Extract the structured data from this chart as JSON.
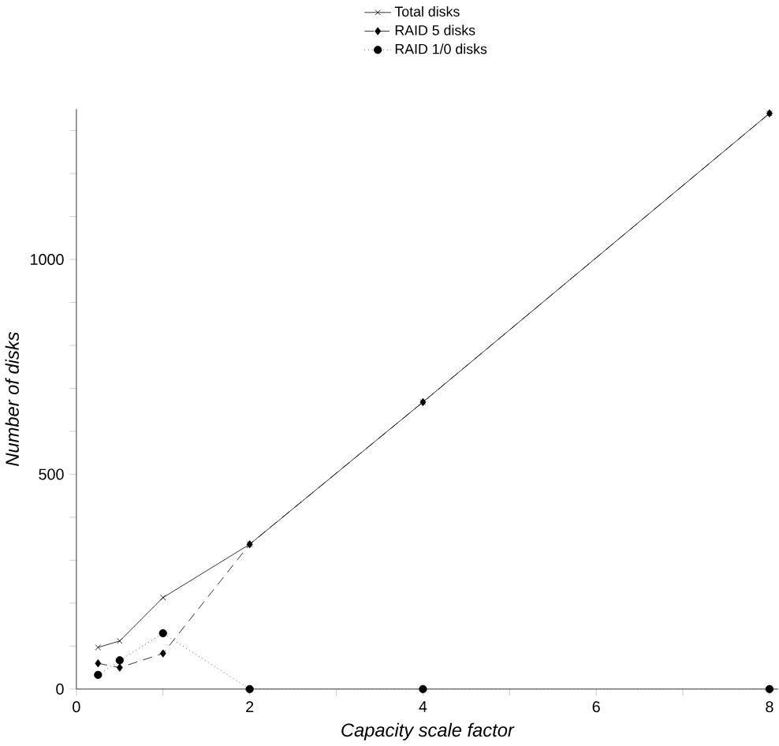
{
  "chart_data": {
    "type": "line",
    "xlabel": "Capacity scale factor",
    "ylabel": "Number of disks",
    "x": [
      0.25,
      0.5,
      1,
      2,
      4,
      8
    ],
    "series": [
      {
        "name": "Total disks",
        "color": "#000000",
        "marker": "cross",
        "line_style": "solid",
        "values": [
          97,
          112,
          213,
          337,
          668,
          1340
        ]
      },
      {
        "name": "RAID 5 disks",
        "color": "#000000",
        "marker": "diamond",
        "line_style": "dashed",
        "values": [
          60,
          50,
          83,
          337,
          668,
          1340
        ]
      },
      {
        "name": "RAID 1/0 disks",
        "color": "#000000",
        "marker": "circle",
        "line_style": "dotted",
        "values": [
          33,
          67,
          130,
          0,
          0,
          0
        ]
      }
    ],
    "xlim": [
      0,
      8.1
    ],
    "ylim": [
      0,
      1350
    ],
    "xticks": [
      0,
      {
        "value": 1,
        "label": null
      },
      2,
      {
        "value": 3,
        "label": null
      },
      4,
      {
        "value": 5,
        "label": null
      },
      6,
      {
        "value": 7,
        "label": null
      },
      8
    ],
    "yticks": [
      0,
      {
        "value": 100,
        "label": null
      },
      {
        "value": 200,
        "label": null
      },
      {
        "value": 300,
        "label": null
      },
      {
        "value": 400,
        "label": null
      },
      500,
      {
        "value": 600,
        "label": null
      },
      {
        "value": 700,
        "label": null
      },
      {
        "value": 800,
        "label": null
      },
      {
        "value": 900,
        "label": null
      },
      1000,
      {
        "value": 1100,
        "label": null
      },
      {
        "value": 1200,
        "label": null
      },
      {
        "value": 1300,
        "label": null
      }
    ],
    "grid": false,
    "legend": "top"
  }
}
